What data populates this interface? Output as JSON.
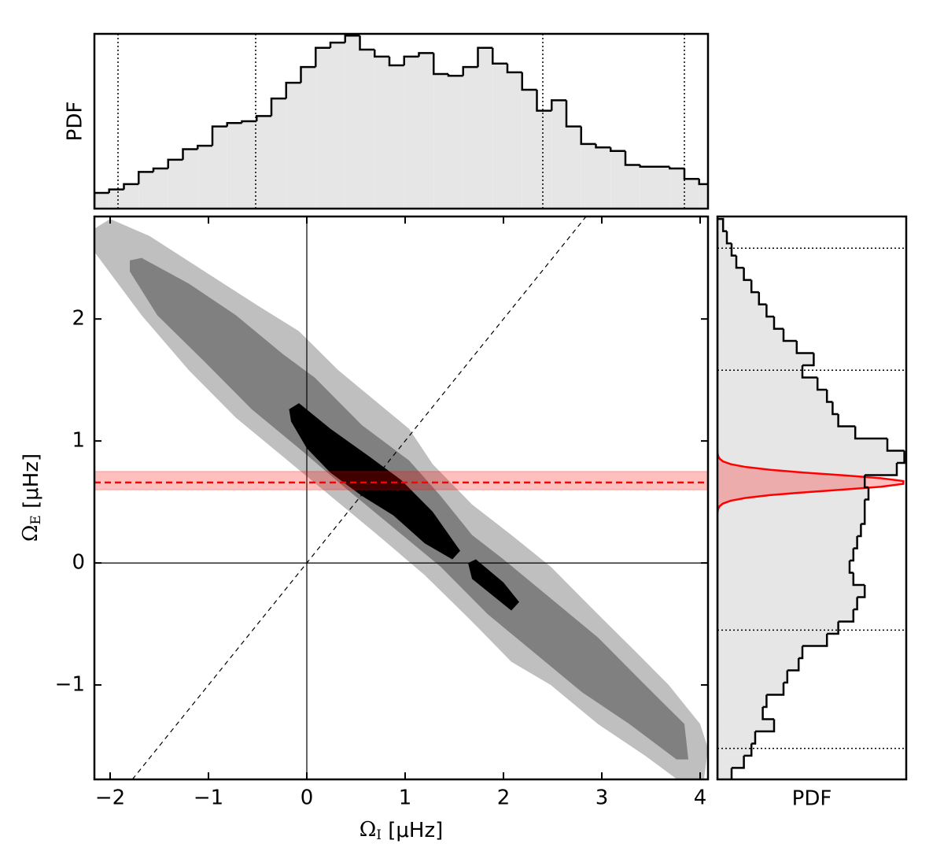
{
  "chart_data": [
    {
      "type": "histogram",
      "orientation": "vertical",
      "ylabel": "PDF",
      "bins": [
        -2.16,
        -2.01,
        -1.86,
        -1.71,
        -1.56,
        -1.41,
        -1.26,
        -1.11,
        -0.96,
        -0.81,
        -0.66,
        -0.51,
        -0.36,
        -0.21,
        -0.06,
        0.09,
        0.24,
        0.39,
        0.54,
        0.69,
        0.84,
        0.99,
        1.14,
        1.29,
        1.44,
        1.59,
        1.74,
        1.89,
        2.04,
        2.19,
        2.34,
        2.49,
        2.64,
        2.79,
        2.94,
        3.09,
        3.24,
        3.39,
        3.54,
        3.69,
        3.84,
        3.99,
        4.14
      ],
      "values": [
        0.09,
        0.11,
        0.14,
        0.21,
        0.23,
        0.28,
        0.34,
        0.36,
        0.47,
        0.49,
        0.5,
        0.53,
        0.63,
        0.72,
        0.81,
        0.92,
        0.95,
        0.99,
        0.91,
        0.87,
        0.82,
        0.87,
        0.89,
        0.77,
        0.76,
        0.81,
        0.92,
        0.83,
        0.78,
        0.68,
        0.56,
        0.62,
        0.47,
        0.37,
        0.35,
        0.33,
        0.25,
        0.24,
        0.24,
        0.23,
        0.17,
        0.14
      ],
      "xlim": [
        -2.16,
        4.08
      ],
      "ylim": [
        0,
        1
      ],
      "color": "#e6e6e6",
      "edgecolor": "#000000",
      "quantiles": [
        -1.92,
        -0.52,
        2.4,
        3.84
      ]
    },
    {
      "type": "contour",
      "xlabel": [
        "Ω",
        "I",
        " [μHz]"
      ],
      "ylabel": [
        "Ω",
        "E",
        " [μHz]"
      ],
      "xlim": [
        -2.16,
        4.08
      ],
      "ylim": [
        -1.774,
        2.84
      ],
      "xticks": [
        {
          "value": -2,
          "label": "−2"
        },
        {
          "value": -1,
          "label": "−1"
        },
        0,
        1,
        2,
        3,
        4
      ],
      "yticks": [
        {
          "value": -1,
          "label": "−1"
        },
        0,
        1,
        2
      ],
      "levels": [
        {
          "color": "#bfbfbf",
          "polygons": [
            {
              "x": [
                -2.16,
                -2.0,
                -1.6,
                -1.04,
                -0.48,
                -0.08,
                0.32,
                0.8,
                1.04,
                1.28,
                1.68,
                2.08,
                2.48,
                2.96,
                3.36,
                3.68,
                4.0,
                4.08,
                4.04,
                3.76,
                3.44,
                2.96,
                2.48,
                2.08,
                1.68,
                1.2,
                0.72,
                0.24,
                -0.24,
                -0.72,
                -1.2,
                -1.68,
                -2.16
              ],
              "y": [
                2.74,
                2.82,
                2.68,
                2.39,
                2.1,
                1.9,
                1.58,
                1.26,
                1.1,
                0.81,
                0.48,
                0.23,
                -0.03,
                -0.42,
                -0.74,
                -1.0,
                -1.32,
                -1.52,
                -1.77,
                -1.77,
                -1.58,
                -1.32,
                -1.0,
                -0.81,
                -0.48,
                -0.1,
                0.23,
                0.55,
                0.87,
                1.19,
                1.58,
                2.03,
                2.55
              ]
            }
          ]
        },
        {
          "color": "#808080",
          "polygons": [
            {
              "x": [
                -1.8,
                -1.68,
                -1.2,
                -0.72,
                -0.24,
                0.08,
                0.56,
                1.04,
                1.36,
                1.68,
                2.0,
                2.48,
                2.96,
                3.44,
                3.84,
                3.88,
                3.76,
                3.28,
                2.8,
                2.32,
                1.84,
                1.36,
                0.88,
                0.4,
                -0.08,
                -0.56,
                -1.04,
                -1.52,
                -1.8
              ],
              "y": [
                2.48,
                2.5,
                2.29,
                2.03,
                1.71,
                1.52,
                1.13,
                0.84,
                0.55,
                0.23,
                0.03,
                -0.29,
                -0.61,
                -1.0,
                -1.32,
                -1.61,
                -1.61,
                -1.32,
                -1.06,
                -0.74,
                -0.42,
                -0.03,
                0.29,
                0.61,
                0.94,
                1.26,
                1.65,
                2.03,
                2.39
              ]
            }
          ]
        },
        {
          "color": "#000000",
          "polygons": [
            {
              "x": [
                -0.18,
                -0.08,
                0.24,
                0.64,
                0.96,
                1.28,
                1.56,
                1.48,
                1.2,
                0.88,
                0.56,
                0.24,
                0.0,
                -0.16
              ],
              "y": [
                1.26,
                1.31,
                1.1,
                0.87,
                0.68,
                0.42,
                0.1,
                0.03,
                0.16,
                0.39,
                0.55,
                0.74,
                0.94,
                1.16
              ]
            },
            {
              "x": [
                1.64,
                1.72,
                2.0,
                2.16,
                2.08,
                1.88,
                1.68
              ],
              "y": [
                0.0,
                0.03,
                -0.16,
                -0.32,
                -0.39,
                -0.26,
                -0.13
              ]
            }
          ]
        }
      ],
      "reference_band": {
        "center": 0.66,
        "low": 0.6,
        "high": 0.75,
        "color": "#ff0000"
      }
    },
    {
      "type": "histogram",
      "orientation": "horizontal",
      "xlabel": "PDF",
      "bins": [
        -1.78,
        -1.68,
        -1.58,
        -1.48,
        -1.38,
        -1.28,
        -1.18,
        -1.08,
        -0.98,
        -0.88,
        -0.78,
        -0.68,
        -0.58,
        -0.48,
        -0.38,
        -0.28,
        -0.18,
        -0.08,
        0.02,
        0.12,
        0.22,
        0.32,
        0.42,
        0.52,
        0.62,
        0.72,
        0.82,
        0.92,
        1.02,
        1.12,
        1.22,
        1.32,
        1.42,
        1.52,
        1.62,
        1.72,
        1.82,
        1.92,
        2.02,
        2.12,
        2.22,
        2.32,
        2.42,
        2.52,
        2.62,
        2.72,
        2.82
      ],
      "values": [
        0.075,
        0.14,
        0.18,
        0.2,
        0.3,
        0.24,
        0.26,
        0.35,
        0.37,
        0.43,
        0.45,
        0.58,
        0.64,
        0.72,
        0.74,
        0.78,
        0.72,
        0.7,
        0.72,
        0.74,
        0.76,
        0.78,
        0.78,
        0.8,
        0.78,
        0.95,
        0.99,
        0.9,
        0.73,
        0.64,
        0.61,
        0.58,
        0.53,
        0.45,
        0.51,
        0.42,
        0.35,
        0.3,
        0.26,
        0.22,
        0.18,
        0.14,
        0.1,
        0.075,
        0.05,
        0.03
      ],
      "xlim": [
        0,
        1
      ],
      "ylim": [
        -1.774,
        2.84
      ],
      "color": "#e6e6e6",
      "edgecolor": "#000000",
      "quantiles": [
        -1.52,
        -0.55,
        1.58,
        2.58
      ],
      "prior": {
        "mean": 0.66,
        "sigma": 0.065,
        "amplitude": 1.0,
        "color": "#ff0000"
      }
    }
  ]
}
